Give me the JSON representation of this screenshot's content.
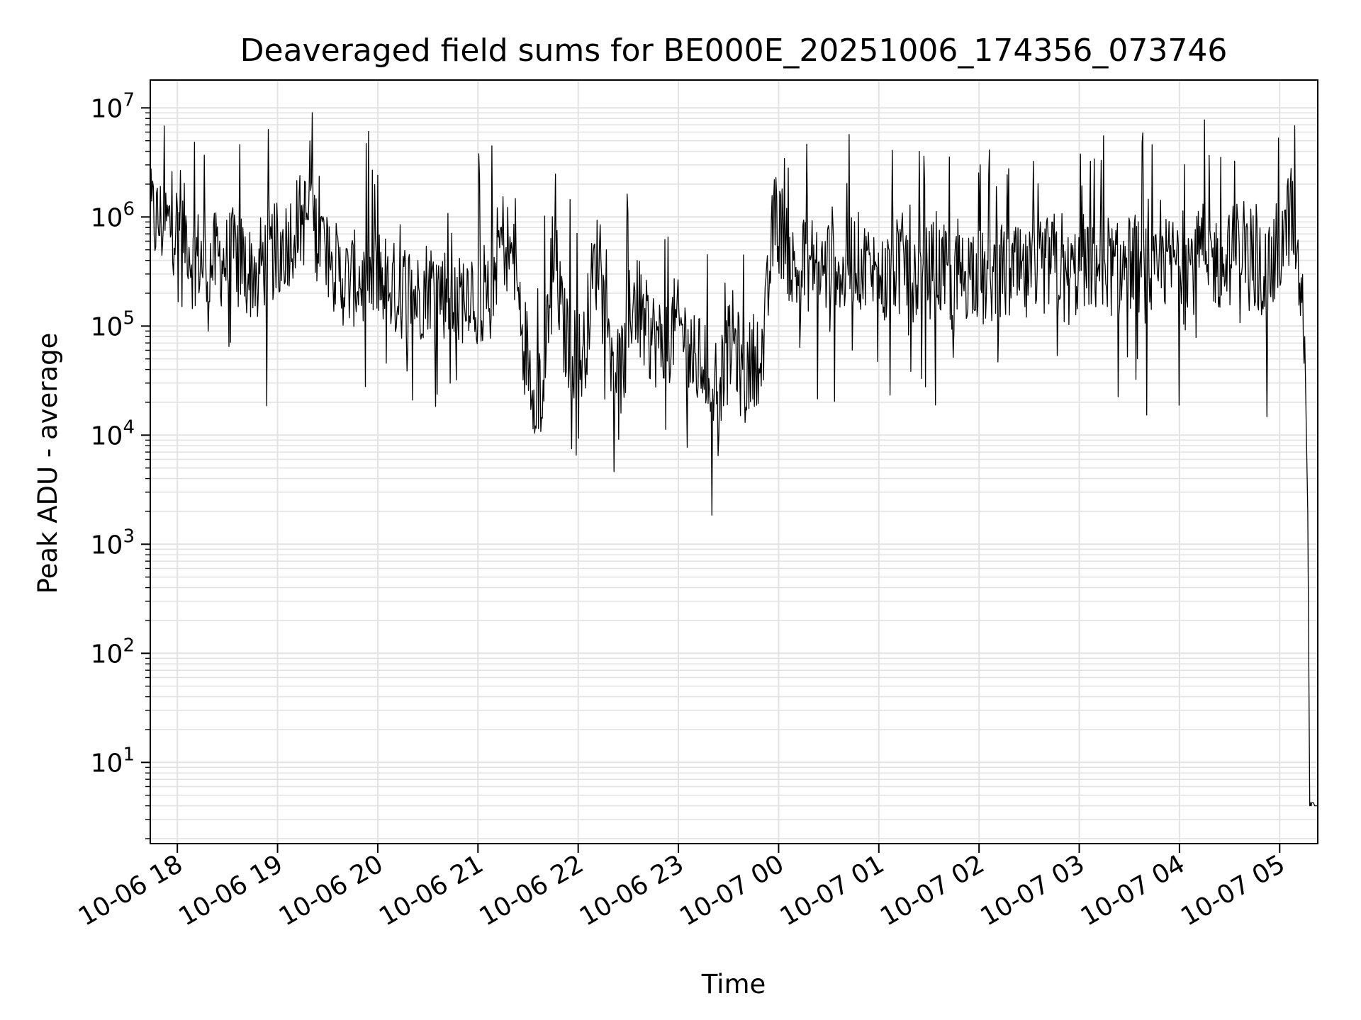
{
  "chart_data": {
    "type": "line",
    "title": "Deaveraged field sums for BE000E_20251006_174356_073746",
    "xlabel": "Time",
    "ylabel": "Peak ADU - average",
    "yscale": "log",
    "ylim": [
      1.8,
      18000000
    ],
    "xlim_hours": [
      -0.27,
      11.38
    ],
    "grid": true,
    "x_tick_labels": [
      "10-06 18",
      "10-06 19",
      "10-06 20",
      "10-06 21",
      "10-06 22",
      "10-06 23",
      "10-07 00",
      "10-07 01",
      "10-07 02",
      "10-07 03",
      "10-07 04",
      "10-07 05"
    ],
    "x_tick_hours": [
      0,
      1,
      2,
      3,
      4,
      5,
      6,
      7,
      8,
      9,
      10,
      11
    ],
    "y_tick_values": [
      10,
      100,
      1000,
      10000,
      100000,
      1000000,
      10000000
    ],
    "y_tick_exponents": [
      "1",
      "2",
      "3",
      "4",
      "5",
      "6",
      "7"
    ],
    "y_tick_base": "10",
    "series": [
      {
        "name": "field sums",
        "color": "#000000",
        "x_hours": [
          -0.27,
          -0.2,
          -0.1,
          0.0,
          0.1,
          0.15,
          0.2,
          0.3,
          0.4,
          0.5,
          0.6,
          0.7,
          0.8,
          0.9,
          1.0,
          1.1,
          1.2,
          1.3,
          1.4,
          1.5,
          1.6,
          1.7,
          1.8,
          1.9,
          2.0,
          2.1,
          2.2,
          2.3,
          2.4,
          2.5,
          2.6,
          2.7,
          2.8,
          2.9,
          3.0,
          3.1,
          3.2,
          3.25,
          3.35,
          3.45,
          3.55,
          3.65,
          3.75,
          3.85,
          3.95,
          4.05,
          4.15,
          4.25,
          4.35,
          4.45,
          4.55,
          4.65,
          4.75,
          4.85,
          4.95,
          5.05,
          5.15,
          5.25,
          5.35,
          5.45,
          5.55,
          5.65,
          5.75,
          5.85,
          5.95,
          6.05,
          6.15,
          6.25,
          6.35,
          6.45,
          6.55,
          6.65,
          6.75,
          6.85,
          6.95,
          7.05,
          7.15,
          7.25,
          7.35,
          7.45,
          7.55,
          7.65,
          7.75,
          7.85,
          7.95,
          8.05,
          8.15,
          8.25,
          8.35,
          8.45,
          8.55,
          8.65,
          8.75,
          8.85,
          8.95,
          9.05,
          9.15,
          9.25,
          9.35,
          9.45,
          9.55,
          9.65,
          9.75,
          9.85,
          9.95,
          10.05,
          10.15,
          10.25,
          10.35,
          10.45,
          10.55,
          10.65,
          10.75,
          10.85,
          10.95,
          11.05,
          11.1,
          11.15,
          11.2,
          11.25,
          11.28,
          11.3,
          11.32,
          11.38
        ],
        "values": [
          1000000,
          900000,
          850000,
          800000,
          700000,
          400000,
          450000,
          350000,
          420000,
          380000,
          500000,
          300000,
          350000,
          420000,
          500000,
          600000,
          900000,
          1000000,
          700000,
          500000,
          300000,
          250000,
          280000,
          220000,
          300000,
          250000,
          200000,
          230000,
          180000,
          250000,
          220000,
          200000,
          150000,
          250000,
          200000,
          150000,
          500000,
          650000,
          400000,
          90000,
          30000,
          25000,
          600000,
          90000,
          60000,
          50000,
          300000,
          600000,
          50000,
          40000,
          200000,
          100000,
          80000,
          60000,
          100000,
          90000,
          40000,
          50000,
          30000,
          40000,
          80000,
          30000,
          50000,
          60000,
          900000,
          700000,
          300000,
          350000,
          400000,
          300000,
          500000,
          250000,
          450000,
          350000,
          300000,
          250000,
          350000,
          400000,
          300000,
          280000,
          350000,
          300000,
          250000,
          300000,
          350000,
          250000,
          300000,
          280000,
          320000,
          250000,
          300000,
          350000,
          400000,
          250000,
          300000,
          400000,
          350000,
          450000,
          300000,
          350000,
          400000,
          300000,
          250000,
          350000,
          400000,
          450000,
          350000,
          500000,
          400000,
          350000,
          500000,
          600000,
          400000,
          300000,
          350000,
          700000,
          1000000,
          900000,
          200000,
          80000,
          2000,
          4,
          4,
          4
        ]
      }
    ]
  }
}
